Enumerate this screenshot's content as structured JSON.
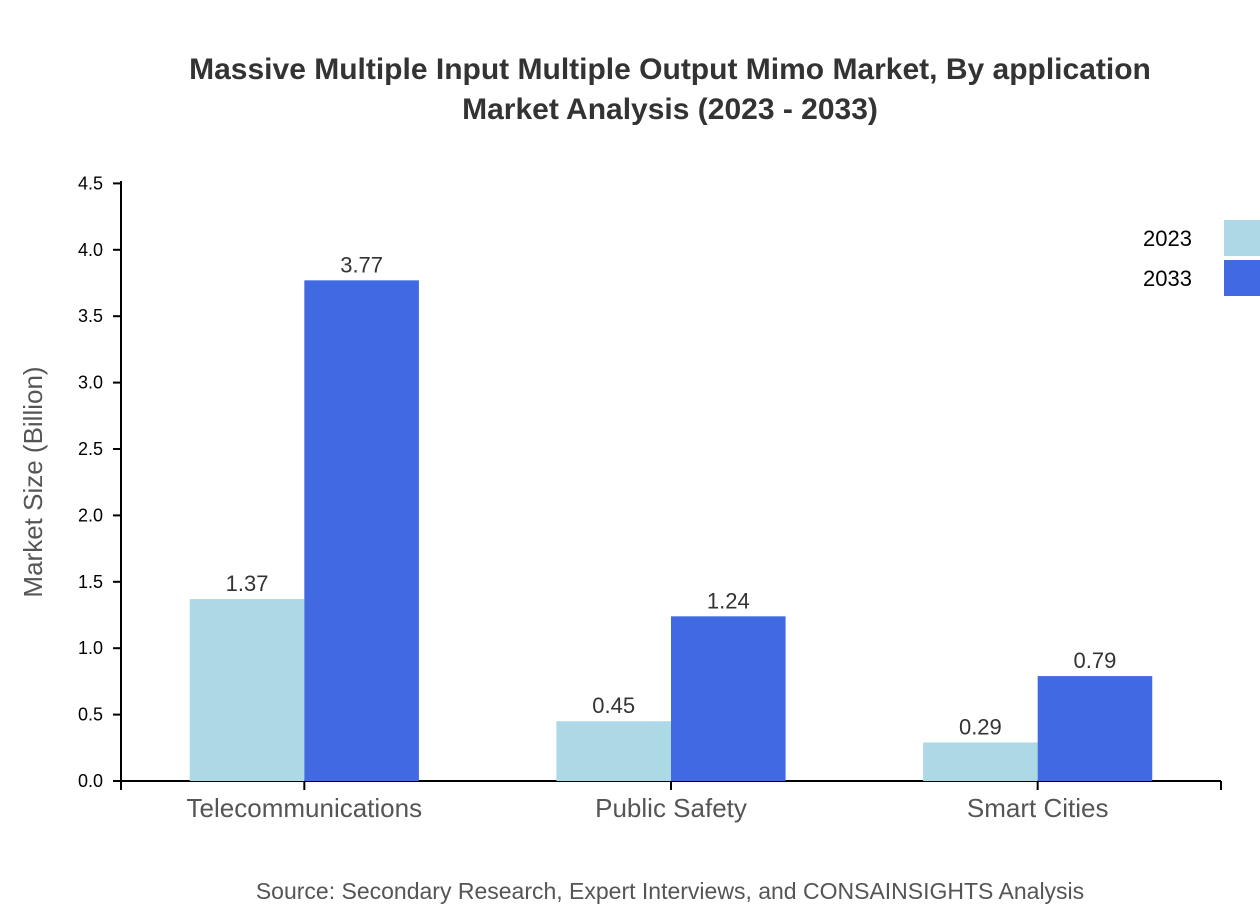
{
  "chart_data": {
    "type": "bar",
    "title": "Massive Multiple Input Multiple Output Mimo Market, By application",
    "subtitle": "Market Analysis (2023 - 2033)",
    "xlabel": "",
    "ylabel": "Market Size (Billion)",
    "categories": [
      "Telecommunications",
      "Public Safety",
      "Smart Cities"
    ],
    "series": [
      {
        "name": "2023",
        "values": [
          1.37,
          0.45,
          0.29
        ],
        "color": "#add8e6"
      },
      {
        "name": "2033",
        "values": [
          3.77,
          1.24,
          0.79
        ],
        "color": "#4169e1"
      }
    ],
    "ylim": [
      0,
      4.5
    ],
    "yticks": [
      "0.0",
      "0.5",
      "1.0",
      "1.5",
      "2.0",
      "2.5",
      "3.0",
      "3.5",
      "4.0",
      "4.5"
    ],
    "grid": false,
    "legend": "top-right"
  },
  "source": "Source: Secondary Research, Expert Interviews, and CONSAINSIGHTS Analysis"
}
